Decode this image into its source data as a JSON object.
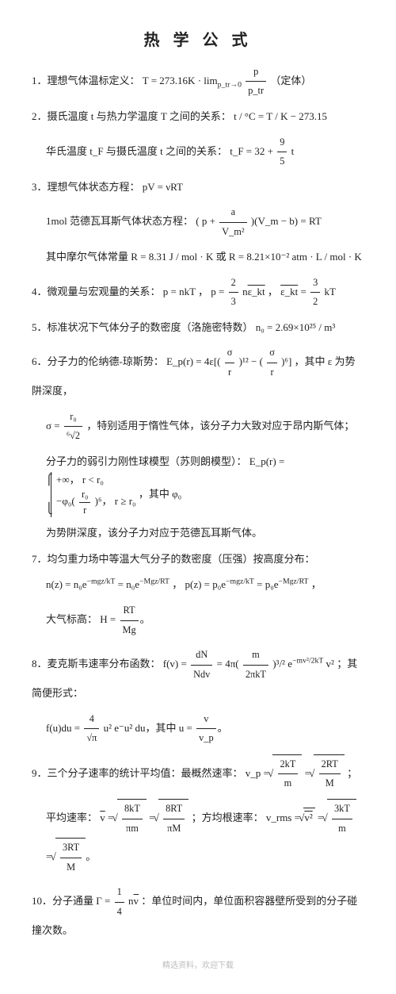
{
  "title": "热 学 公 式",
  "items": {
    "i1_label": "1．理想气体温标定义：",
    "i1_f": "T = 273.16K · lim",
    "i1_sub": "p_tr→0",
    "i1_frac_n": "p",
    "i1_frac_d": "p_tr",
    "i1_tail": "（定体）",
    "i2_label": "2．摄氏温度 t 与热力学温度 T 之间的关系：",
    "i2_f": "t / °C = T / K − 273.15",
    "i2b_label": "华氏温度 t_F 与摄氏温度 t 之间的关系：",
    "i2b_lhs": "t_F = 32 + ",
    "i2b_n": "9",
    "i2b_d": "5",
    "i2b_tail": " t",
    "i3_label": "3．理想气体状态方程：",
    "i3_f": "pV = νRT",
    "i3b_label": "1mol 范德瓦耳斯气体状态方程：",
    "i3b_f1": "( p + ",
    "i3b_n": "a",
    "i3b_d": "V_m²",
    "i3b_f2": " )(V_m − b) = RT",
    "i3c_label": "其中摩尔气体常量 ",
    "i3c_f": "R = 8.31 J / mol · K 或 R = 8.21×10⁻² atm · L / mol · K",
    "i4_label": "4．微观量与宏观量的关系：",
    "i4_f": "p = nkT ，  p = ",
    "i4_n1": "2",
    "i4_d1": "3",
    "i4_mid": " n",
    "i4_ek": "ε_kt",
    "i4_f2": " ，  ",
    "i4_ek2": "ε_kt",
    "i4_eq": " = ",
    "i4_n2": "3",
    "i4_d2": "2",
    "i4_tail": " kT",
    "i5_label": "5．标准状况下气体分子的数密度（洛施密特数）",
    "i5_f": "n₀ = 2.69×10²⁵ / m³",
    "i6_label": "6．分子力的伦纳德-琼斯势：",
    "i6_lhs": "E_p(r) = 4ε[(",
    "i6_n1": "σ",
    "i6_d1": "r",
    "i6_p1": ")¹² − (",
    "i6_n2": "σ",
    "i6_d2": "r",
    "i6_p2": ")⁶]",
    "i6_tail": "，其中 ε 为势阱深度，",
    "i6b_lhs": "σ = ",
    "i6b_n": "r₀",
    "i6b_d": "⁶√2",
    "i6b_tail": "，特别适用于惰性气体，该分子力大致对应于昂内斯气体；",
    "i6c_label": "分子力的弱引力刚性球模型（苏则朗模型）：",
    "i6c_lhs": "E_p(r) = ",
    "i6c_c1": "+∞，   r < r₀",
    "i6c_c2a": "−φ₀(",
    "i6c_c2n": "r₀",
    "i6c_c2d": "r",
    "i6c_c2b": ")⁶，  r ≥ r₀",
    "i6c_tail": "，其中 φ₀",
    "i6d": "为势阱深度，该分子力对应于范德瓦耳斯气体。",
    "i7_label": "7．均匀重力场中等温大气分子的数密度（压强）按高度分布：",
    "i7_f1": "n(z) = n₀e",
    "i7_e1": "−mgz/kT",
    "i7_eq1": " = n₀e",
    "i7_e2": "−Mgz/RT",
    "i7_sep": "，   p(z) = p₀e",
    "i7_e3": "−mgz/kT",
    "i7_eq2": " = p₀e",
    "i7_e4": "−Mgz/RT",
    "i7_dot": "，",
    "i7b_label": "大气标高：",
    "i7b_lhs": "H = ",
    "i7b_n": "RT",
    "i7b_d": "Mg",
    "i8_label": "8．麦克斯韦速率分布函数：",
    "i8_lhs": "f(v) = ",
    "i8_n1": "dN",
    "i8_d1": "Ndv",
    "i8_mid": " = 4π(",
    "i8_n2": "m",
    "i8_d2": "2πkT",
    "i8_p": ")³/² e",
    "i8_exp": "−mv²/2kT",
    "i8_v2": " v²",
    "i8_tail": "；其简便形式：",
    "i8b_lhs": "f(u)du = ",
    "i8b_n": "4",
    "i8b_d": "√π",
    "i8b_mid": " u² e⁻u² du，其中 u = ",
    "i8b_n2": "v",
    "i8b_d2": "v_p",
    "i9_label": "9．三个分子速率的统计平均值：最概然速率：",
    "i9_lhs": "v_p = ",
    "i9_s1n": "2kT",
    "i9_s1d": "m",
    "i9_eq": " = ",
    "i9_s2n": "2RT",
    "i9_s2d": "M",
    "i9_sc": "；",
    "i9b_label": "平均速率：",
    "i9b_lhs": " = ",
    "i9b_s1n": "8kT",
    "i9b_s1d": "πm",
    "i9b_eq": " = ",
    "i9b_s2n": "8RT",
    "i9b_s2d": "πM",
    "i9b_sep": "；方均根速率：",
    "i9b_rhs": "v_rms = ",
    "i9b_s3": "v²",
    "i9b_eq2": " = ",
    "i9b_s4n": "3kT",
    "i9b_s4d": "m",
    "i9b_eq3": " = ",
    "i9b_s5n": "3RT",
    "i9b_s5d": "M",
    "i10_label": "10．分子通量 Γ = ",
    "i10_n": "1",
    "i10_d": "4",
    "i10_mid": " n",
    "i10_v": "v",
    "i10_tail": "：单位时间内，单位面积容器壁所受到的分子碰撞次数。"
  },
  "footer": "精选资料，欢迎下载"
}
